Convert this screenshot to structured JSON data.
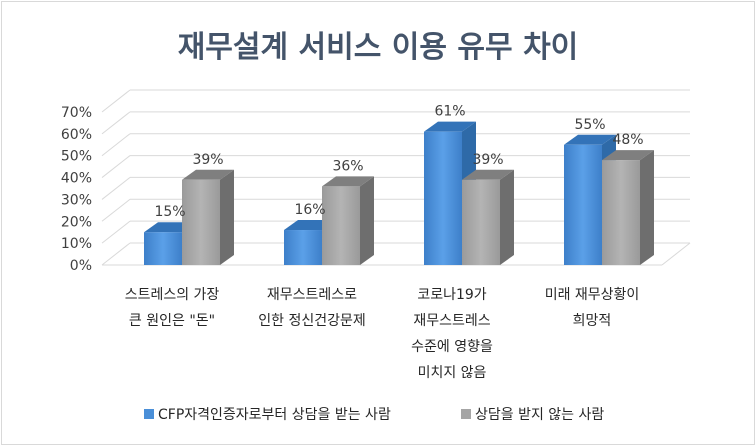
{
  "chart_data": {
    "type": "bar",
    "title": "재무설계 서비스 이용 유무 차이",
    "categories": [
      [
        "스트레스의 가장",
        "큰 원인은 \"돈\""
      ],
      [
        "재무스트레스로",
        "인한 정신건강문제"
      ],
      [
        "코로나19가",
        "재무스트레스",
        "수준에 영향을",
        "미치지 않음"
      ],
      [
        "미래 재무상황이",
        "희망적"
      ]
    ],
    "series": [
      {
        "name": "CFP자격인증자로부터 상담을 받는 사람",
        "values": [
          15,
          16,
          61,
          55
        ],
        "labels": [
          "15%",
          "16%",
          "61%",
          "55%"
        ],
        "color": "#4a8fd8"
      },
      {
        "name": "상담을 받지 않는 사람",
        "values": [
          39,
          36,
          39,
          48
        ],
        "labels": [
          "39%",
          "36%",
          "39%",
          "48%"
        ],
        "color": "#a5a5a5"
      }
    ],
    "yticks": [
      "0%",
      "10%",
      "20%",
      "30%",
      "40%",
      "50%",
      "60%",
      "70%"
    ],
    "ylim": [
      0,
      70
    ],
    "grid": true,
    "legend": "bottom",
    "style": "3d-column"
  }
}
